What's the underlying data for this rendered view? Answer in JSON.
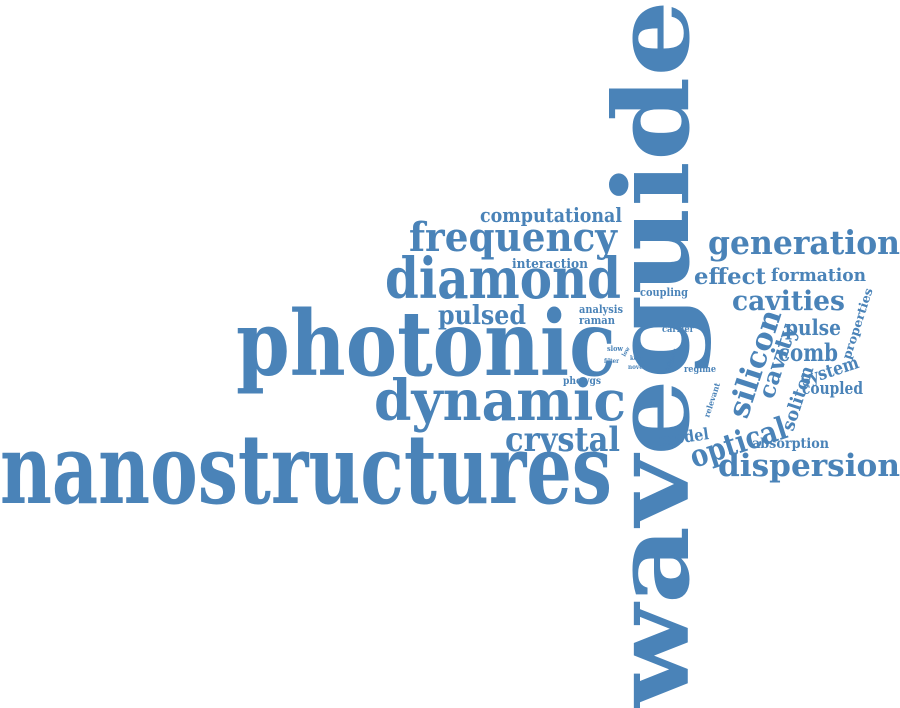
{
  "cloud": {
    "color": "#4a83b8",
    "words": [
      {
        "id": "waveguide",
        "text": "waveguide"
      },
      {
        "id": "nanostructures",
        "text": "nanostructures"
      },
      {
        "id": "photonic",
        "text": "photonic"
      },
      {
        "id": "dynamic",
        "text": "dynamic"
      },
      {
        "id": "diamond",
        "text": "diamond"
      },
      {
        "id": "frequency",
        "text": "frequency"
      },
      {
        "id": "crystal",
        "text": "crystal"
      },
      {
        "id": "generation",
        "text": "generation"
      },
      {
        "id": "dispersion",
        "text": "dispersion"
      },
      {
        "id": "optical",
        "text": "optical"
      },
      {
        "id": "silicon",
        "text": "silicon"
      },
      {
        "id": "cavities",
        "text": "cavities"
      },
      {
        "id": "computational",
        "text": "computational"
      },
      {
        "id": "pulsed",
        "text": "pulsed"
      },
      {
        "id": "effect",
        "text": "effect"
      },
      {
        "id": "formation",
        "text": "formation"
      },
      {
        "id": "pulse",
        "text": "pulse"
      },
      {
        "id": "comb",
        "text": "comb"
      },
      {
        "id": "cavity",
        "text": "cavity"
      },
      {
        "id": "system",
        "text": "system"
      },
      {
        "id": "soliton",
        "text": "soliton"
      },
      {
        "id": "coupled",
        "text": "coupled"
      },
      {
        "id": "properties",
        "text": "properties"
      },
      {
        "id": "interaction",
        "text": "interaction"
      },
      {
        "id": "model",
        "text": "model"
      },
      {
        "id": "absorption",
        "text": "absorption"
      },
      {
        "id": "coupling",
        "text": "coupling"
      },
      {
        "id": "analysis",
        "text": "analysis"
      },
      {
        "id": "raman",
        "text": "raman"
      },
      {
        "id": "carrier",
        "text": "carrier"
      },
      {
        "id": "phcwgs",
        "text": "phcwgs"
      },
      {
        "id": "regime",
        "text": "regime"
      },
      {
        "id": "relevant",
        "text": "relevant"
      },
      {
        "id": "slow",
        "text": "slow"
      },
      {
        "id": "filter",
        "text": "filter"
      },
      {
        "id": "low",
        "text": "low"
      },
      {
        "id": "kerr",
        "text": "kerr"
      },
      {
        "id": "novel",
        "text": "novel"
      },
      {
        "id": "light",
        "text": "light"
      },
      {
        "id": "linear",
        "text": "linear"
      }
    ]
  }
}
